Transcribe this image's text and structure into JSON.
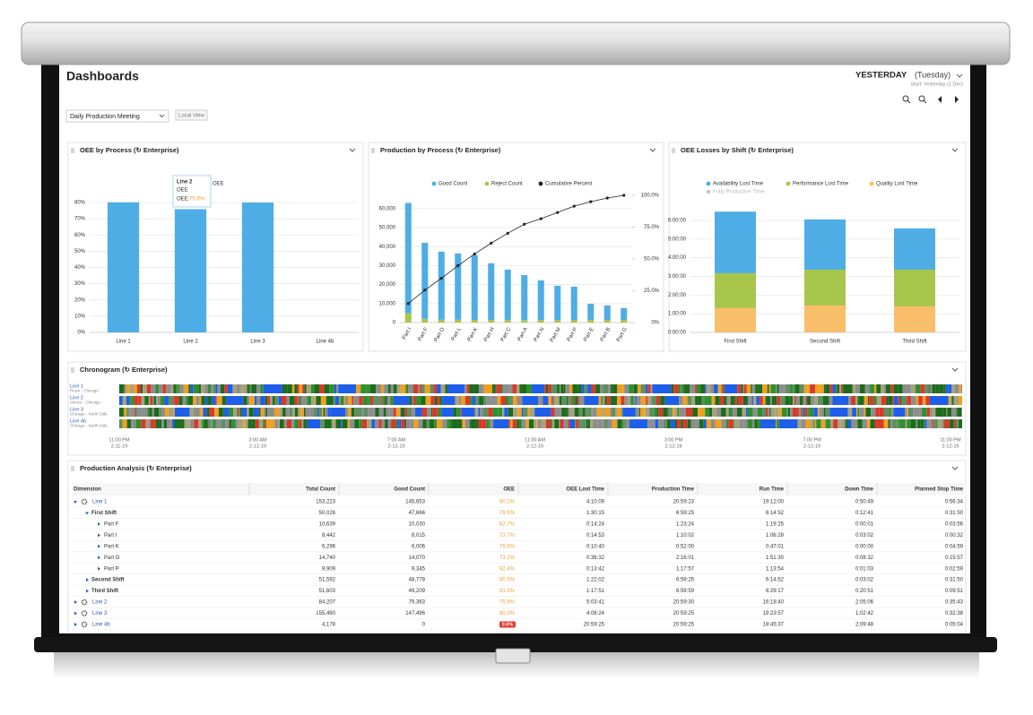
{
  "header": {
    "title": "Dashboards",
    "period": "YESTERDAY",
    "day": "(Tuesday)",
    "start": "Start: Yesterday (1 Dec)",
    "dashboard_select": "Daily Production Meeting",
    "view_button": "Local View"
  },
  "chart_data": [
    {
      "type": "bar",
      "title": "OEE by Process (↻ Enterprise)",
      "categories": [
        "Line 1",
        "Line 2",
        "Line 3",
        "Line 4b"
      ],
      "series": [
        {
          "name": "OEE",
          "color": "#4fade6",
          "values": [
            80.1,
            75.9,
            80.0,
            0.0
          ]
        }
      ],
      "ylim": [
        0,
        90
      ],
      "yticks": [
        {
          "value": 0,
          "label": "0%"
        },
        {
          "value": 10,
          "label": "10%"
        },
        {
          "value": 20,
          "label": "20%"
        },
        {
          "value": 30,
          "label": "30%"
        },
        {
          "value": 40,
          "label": "40%"
        },
        {
          "value": 50,
          "label": "50%"
        },
        {
          "value": 60,
          "label": "60%"
        },
        {
          "value": 70,
          "label": "70%"
        },
        {
          "value": 80,
          "label": "80%"
        }
      ],
      "grid": true,
      "tooltip": {
        "title": "Line 2",
        "series": "OEE",
        "label": "OEE:",
        "value": "75.9%"
      }
    },
    {
      "type": "bar",
      "title": "Production by Process (↻ Enterprise)",
      "categories": [
        "Part I",
        "Part F",
        "Part O",
        "Part L",
        "Part K",
        "Part H",
        "Part C",
        "Part A",
        "Part N",
        "Part M",
        "Part P",
        "Part E",
        "Part B",
        "Part G"
      ],
      "series": [
        {
          "name": "Good Count",
          "color": "#4fade6",
          "values": [
            58000,
            40000,
            35800,
            34900,
            34000,
            29800,
            26500,
            23700,
            20800,
            18000,
            17500,
            8500,
            7600,
            6200
          ]
        },
        {
          "name": "Reject Count",
          "color": "#a9c64c",
          "values": [
            5000,
            2000,
            1500,
            1500,
            1400,
            1400,
            1400,
            1300,
            1400,
            1400,
            1400,
            1400,
            1400,
            1400
          ]
        },
        {
          "name": "Cumulative Percent",
          "color": "#222222",
          "type": "line",
          "axis": "y2",
          "values": [
            14.9,
            25.5,
            34.8,
            44.7,
            53.9,
            62.4,
            70.2,
            77.3,
            81.6,
            86.5,
            91.5,
            95.0,
            97.9,
            100.0
          ]
        }
      ],
      "ylim": [
        0,
        67000
      ],
      "yticks": [
        0,
        {
          "value": 10000,
          "label": "10,000"
        },
        {
          "value": 20000,
          "label": "20,000"
        },
        {
          "value": 30000,
          "label": "30,000"
        },
        {
          "value": 40000,
          "label": "40,000"
        },
        {
          "value": 50000,
          "label": "50,000"
        },
        {
          "value": 60000,
          "label": "60,000"
        }
      ],
      "y2lim": [
        0,
        100
      ],
      "y2ticks": [
        {
          "value": 0,
          "label": "0%"
        },
        {
          "value": 25,
          "label": "25.0%"
        },
        {
          "value": 50,
          "label": "50.0%"
        },
        {
          "value": 75,
          "label": "75.0%"
        },
        {
          "value": 100,
          "label": "100.0%"
        }
      ],
      "grid": true
    },
    {
      "type": "bar",
      "title": "OEE Losses by Shift (↻ Enterprise)",
      "categories": [
        "First Shift",
        "Second Shift",
        "Third Shift"
      ],
      "series": [
        {
          "name": "Availability Lost Time",
          "color": "#4fade6",
          "values": [
            3.3,
            2.69,
            2.21
          ]
        },
        {
          "name": "Performance Lost Time",
          "color": "#a9c64c",
          "values": [
            1.87,
            1.92,
            1.97
          ]
        },
        {
          "name": "Quality Lost Time",
          "color": "#f9be6a",
          "values": [
            1.3,
            1.44,
            1.39
          ]
        },
        {
          "name": "Fully Productive Time",
          "color": "#cccccc",
          "visible": false
        }
      ],
      "ylim": [
        0,
        6.8
      ],
      "yticks": [
        {
          "value": 0,
          "label": "0:00:00"
        },
        {
          "value": 1,
          "label": "1:00:00"
        },
        {
          "value": 2,
          "label": "2:00:00"
        },
        {
          "value": 3,
          "label": "3:00:00"
        },
        {
          "value": 4,
          "label": "4:00:00"
        },
        {
          "value": 5,
          "label": "5:00:00"
        },
        {
          "value": 6,
          "label": "6:00:00"
        }
      ],
      "grid": true
    }
  ],
  "chronogram": {
    "title": "Chronogram (↻ Enterprise)",
    "rows": [
      {
        "name": "Line 1",
        "location": "Rossi - Chicago"
      },
      {
        "name": "Line 2",
        "location": "Venice - Chicago"
      },
      {
        "name": "Line 3",
        "location": "Chicago - North Side"
      },
      {
        "name": "Line 4b",
        "location": "Chicago - North Side"
      }
    ],
    "time_labels": [
      {
        "time": "11:00 PM",
        "date": "2-11-19"
      },
      {
        "time": "3:00 AM",
        "date": "2-12-19"
      },
      {
        "time": "7:00 AM",
        "date": "2-12-19"
      },
      {
        "time": "11:00 AM",
        "date": "2-12-19"
      },
      {
        "time": "3:00 PM",
        "date": "2-12-19"
      },
      {
        "time": "7:00 PM",
        "date": "2-12-19"
      },
      {
        "time": "11:00 PM",
        "date": "2-12-19"
      }
    ]
  },
  "table": {
    "title": "Production Analysis (↻ Enterprise)",
    "columns": [
      "Dimension",
      "Total Count",
      "Good Count",
      "OEE",
      "OEE Lost Time",
      "Production Time",
      "Run Time",
      "Down Time",
      "Planned Stop Time"
    ],
    "rows": [
      {
        "dimension": "Line 1",
        "values": [
          "153,223",
          "145,653",
          "80.1%",
          "4:10:09",
          "20:59:23",
          "19:12:00",
          "0:50:49",
          "0:56:34"
        ],
        "children": [
          {
            "dimension": "First Shift",
            "values": [
              "50,026",
              "47,666",
              "79.5%",
              "1:30:15",
              "6:59:25",
              "6:14:52",
              "0:12:41",
              "0:31:50"
            ],
            "children": [
              {
                "dimension": "Part F",
                "values": [
                  "10,639",
                  "10,030",
                  "82.7%",
                  "0:14:24",
                  "1:23:24",
                  "1:19:25",
                  "0:00:01",
                  "0:03:56"
                ]
              },
              {
                "dimension": "Part I",
                "values": [
                  "8,442",
                  "8,015",
                  "73.7%",
                  "0:14:53",
                  "1:10:02",
                  "1:06:28",
                  "0:03:02",
                  "0:00:32"
                ]
              },
              {
                "dimension": "Part K",
                "values": [
                  "6,296",
                  "6,006",
                  "79.5%",
                  "0:10:40",
                  "0:52:00",
                  "0:47:01",
                  "0:00:00",
                  "0:04:59"
                ]
              },
              {
                "dimension": "Part O",
                "values": [
                  "14,740",
                  "14,070",
                  "73.1%",
                  "0:36:32",
                  "2:16:01",
                  "1:51:30",
                  "0:08:32",
                  "0:15:57"
                ]
              },
              {
                "dimension": "Part P",
                "values": [
                  "9,909",
                  "9,345",
                  "82.4%",
                  "0:13:42",
                  "1:17:57",
                  "1:13:54",
                  "0:01:03",
                  "0:02:59"
                ]
              }
            ]
          },
          {
            "dimension": "Second Shift",
            "values": [
              "51,592",
              "48,778",
              "80.5%",
              "1:22:02",
              "6:59:25",
              "6:14:52",
              "0:03:02",
              "0:31:50"
            ]
          },
          {
            "dimension": "Third Shift",
            "values": [
              "51,603",
              "49,209",
              "81.5%",
              "1:17:51",
              "6:59:59",
              "6:29:17",
              "0:20:51",
              "0:09:51"
            ]
          }
        ]
      },
      {
        "dimension": "Line 2",
        "values": [
          "84,207",
          "79,363",
          "75.9%",
          "5:03:41",
          "20:59:30",
          "16:18:40",
          "2:05:06",
          "0:35:43"
        ]
      },
      {
        "dimension": "Line 3",
        "values": [
          "155,490",
          "147,496",
          "80.0%",
          "4:08:24",
          "20:59:25",
          "19:23:57",
          "1:02:42",
          "0:32:38"
        ]
      },
      {
        "dimension": "Line 4b",
        "values": [
          "4,178",
          "0",
          "0.0%",
          "20:59:25",
          "20:59:25",
          "18:45:37",
          "2:09:48",
          "0:05:04"
        ]
      }
    ]
  }
}
